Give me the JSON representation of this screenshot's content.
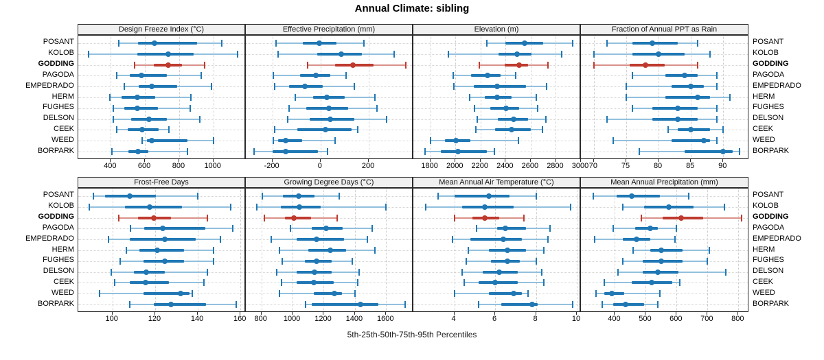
{
  "chart_data": {
    "type": "dot-interval-trellis",
    "title": "Annual Climate: sibling",
    "percentile_labels": "5th-25th-50th-75th-95th Percentiles",
    "percentiles": [
      5,
      25,
      50,
      75,
      95
    ],
    "highlight_station": "GODDING",
    "colors": {
      "series_main": "#1f77b4",
      "series_light": "#92c0dd",
      "highlight_main": "#bf3a2e",
      "highlight_light": "#d99189",
      "header_bg": "#f0f0f0",
      "grid": "#cccccc"
    },
    "stations": [
      "POSANT",
      "KOLOB",
      "GODDING",
      "PAGODA",
      "EMPEDRADO",
      "HERM",
      "FUGHES",
      "DELSON",
      "CEEK",
      "WEED",
      "BORPARK"
    ],
    "panels": [
      {
        "title": "Design Freeze Index (°C)",
        "grid_row": 0,
        "grid_col": 0,
        "ticks": [
          400,
          600,
          800,
          1000
        ],
        "domain": [
          210,
          1190
        ],
        "series": [
          [
            445,
            560,
            655,
            905,
            1050
          ],
          [
            270,
            555,
            735,
            885,
            1140
          ],
          [
            540,
            650,
            735,
            815,
            950
          ],
          [
            435,
            510,
            580,
            730,
            930
          ],
          [
            480,
            565,
            640,
            790,
            990
          ],
          [
            395,
            465,
            555,
            660,
            870
          ],
          [
            415,
            480,
            555,
            675,
            865
          ],
          [
            415,
            520,
            625,
            730,
            920
          ],
          [
            435,
            500,
            585,
            680,
            740
          ],
          [
            585,
            610,
            640,
            850,
            1000
          ],
          [
            405,
            505,
            560,
            620,
            850
          ]
        ]
      },
      {
        "title": "Effective Precipitation (mm)",
        "grid_row": 0,
        "grid_col": 1,
        "ticks": [
          -200,
          0,
          200
        ],
        "domain": [
          -310,
          385
        ],
        "series": [
          [
            -185,
            -75,
            -5,
            65,
            180
          ],
          [
            -175,
            -15,
            85,
            170,
            305
          ],
          [
            -55,
            60,
            135,
            220,
            355
          ],
          [
            -195,
            -85,
            -20,
            40,
            105
          ],
          [
            -190,
            -130,
            -65,
            10,
            140
          ],
          [
            -105,
            -30,
            25,
            100,
            225
          ],
          [
            -130,
            -60,
            35,
            115,
            235
          ],
          [
            -135,
            -45,
            40,
            140,
            275
          ],
          [
            -190,
            -95,
            20,
            130,
            155
          ],
          [
            -195,
            -175,
            -145,
            -75,
            60
          ],
          [
            -275,
            -200,
            -145,
            -10,
            30
          ]
        ]
      },
      {
        "title": "Elevation (m)",
        "grid_row": 0,
        "grid_col": 2,
        "ticks": [
          1800,
          2000,
          2200,
          2400,
          2600,
          2800,
          3000
        ],
        "domain": [
          1665,
          3000
        ],
        "series": [
          [
            2250,
            2400,
            2550,
            2700,
            2935
          ],
          [
            1945,
            2345,
            2490,
            2605,
            2845
          ],
          [
            2190,
            2395,
            2510,
            2580,
            2735
          ],
          [
            1985,
            2125,
            2255,
            2360,
            2480
          ],
          [
            1990,
            2145,
            2335,
            2560,
            2725
          ],
          [
            2115,
            2235,
            2330,
            2450,
            2645
          ],
          [
            2150,
            2280,
            2405,
            2505,
            2655
          ],
          [
            2175,
            2340,
            2465,
            2580,
            2720
          ],
          [
            2165,
            2315,
            2445,
            2600,
            2695
          ],
          [
            1800,
            1915,
            2005,
            2120,
            2500
          ],
          [
            1760,
            1885,
            2020,
            2250,
            2310
          ]
        ]
      },
      {
        "title": "Fraction of Annual PPT as Rain",
        "grid_row": 0,
        "grid_col": 3,
        "ticks": [
          70,
          75,
          80,
          85,
          90
        ],
        "domain": [
          68,
          94
        ],
        "series": [
          [
            72,
            76,
            79,
            83,
            86
          ],
          [
            70,
            76,
            80,
            84,
            88
          ],
          [
            70,
            75.5,
            78,
            81,
            86
          ],
          [
            76,
            81,
            84,
            86,
            89
          ],
          [
            75,
            82,
            85,
            87,
            89
          ],
          [
            75,
            81,
            86,
            88,
            91
          ],
          [
            76,
            79,
            83,
            86,
            89
          ],
          [
            72,
            79,
            83,
            86,
            89
          ],
          [
            81.5,
            83,
            85,
            88,
            90
          ],
          [
            73,
            82,
            87,
            88,
            89
          ],
          [
            77,
            84,
            90,
            91.5,
            92.5
          ]
        ]
      },
      {
        "title": "Frost-Free Days",
        "grid_row": 1,
        "grid_col": 0,
        "ticks": [
          100,
          120,
          140,
          160
        ],
        "domain": [
          84,
          162.5
        ],
        "series": [
          [
            91,
            96.5,
            108,
            120.5,
            140
          ],
          [
            89,
            106,
            117.5,
            132.5,
            155.5
          ],
          [
            103,
            112,
            119.5,
            127.5,
            144.5
          ],
          [
            108.5,
            115,
            123.5,
            143.5,
            156.5
          ],
          [
            98,
            108,
            124.5,
            139,
            150.5
          ],
          [
            106.5,
            112.5,
            121,
            133.5,
            147.5
          ],
          [
            103.5,
            114.5,
            124.5,
            133.5,
            147.5
          ],
          [
            99.5,
            110,
            116,
            124.5,
            144.5
          ],
          [
            101,
            108,
            115.5,
            126.5,
            143
          ],
          [
            94,
            114.5,
            132,
            136,
            137.5
          ],
          [
            108,
            119.5,
            127.5,
            144,
            158
          ]
        ]
      },
      {
        "title": "Growing Degree Days (°C)",
        "grid_row": 1,
        "grid_col": 1,
        "ticks": [
          800,
          1000,
          1200,
          1400,
          1600
        ],
        "domain": [
          700,
          1775
        ],
        "series": [
          [
            805,
            940,
            1040,
            1140,
            1300
          ],
          [
            770,
            925,
            1045,
            1180,
            1600
          ],
          [
            820,
            950,
            1010,
            1120,
            1285
          ],
          [
            985,
            1125,
            1215,
            1320,
            1510
          ],
          [
            865,
            1025,
            1155,
            1330,
            1480
          ],
          [
            915,
            1100,
            1240,
            1345,
            1530
          ],
          [
            935,
            1080,
            1155,
            1250,
            1385
          ],
          [
            900,
            1025,
            1140,
            1250,
            1425
          ],
          [
            930,
            1025,
            1135,
            1265,
            1420
          ],
          [
            915,
            1135,
            1270,
            1315,
            1400
          ],
          [
            1085,
            1125,
            1435,
            1550,
            1720
          ]
        ]
      },
      {
        "title": "Mean Annual Air Temperature (°C)",
        "grid_row": 1,
        "grid_col": 2,
        "ticks": [
          4,
          6,
          8,
          10
        ],
        "domain": [
          2,
          10.2
        ],
        "series": [
          [
            3.2,
            4.0,
            5.7,
            6.7,
            8.0
          ],
          [
            2.6,
            4.4,
            5.5,
            6.9,
            9.7
          ],
          [
            4.0,
            4.9,
            5.5,
            6.2,
            7.4
          ],
          [
            5.1,
            6.1,
            6.5,
            7.5,
            8.7
          ],
          [
            3.9,
            4.8,
            6.4,
            7.3,
            8.6
          ],
          [
            4.7,
            5.7,
            6.6,
            7.5,
            8.4
          ],
          [
            4.6,
            5.8,
            6.6,
            7.2,
            8.0
          ],
          [
            4.4,
            5.4,
            6.2,
            7.1,
            8.3
          ],
          [
            4.5,
            5.2,
            6.0,
            7.1,
            8.4
          ],
          [
            4.0,
            5.7,
            6.9,
            7.3,
            7.6
          ],
          [
            5.2,
            6.3,
            7.8,
            8.1,
            9.8
          ]
        ]
      },
      {
        "title": "Mean Annual Precipitation (mm)",
        "grid_row": 1,
        "grid_col": 3,
        "ticks": [
          400,
          500,
          600,
          700,
          800
        ],
        "domain": [
          290,
          835
        ],
        "series": [
          [
            330,
            405,
            455,
            545,
            640
          ],
          [
            425,
            495,
            575,
            655,
            755
          ],
          [
            485,
            555,
            615,
            685,
            810
          ],
          [
            395,
            465,
            515,
            540,
            600
          ],
          [
            335,
            425,
            470,
            515,
            595
          ],
          [
            460,
            515,
            550,
            620,
            705
          ],
          [
            425,
            490,
            550,
            620,
            700
          ],
          [
            410,
            490,
            540,
            605,
            760
          ],
          [
            365,
            455,
            520,
            585,
            610
          ],
          [
            340,
            365,
            390,
            430,
            545
          ],
          [
            360,
            395,
            435,
            495,
            540
          ]
        ]
      }
    ]
  }
}
